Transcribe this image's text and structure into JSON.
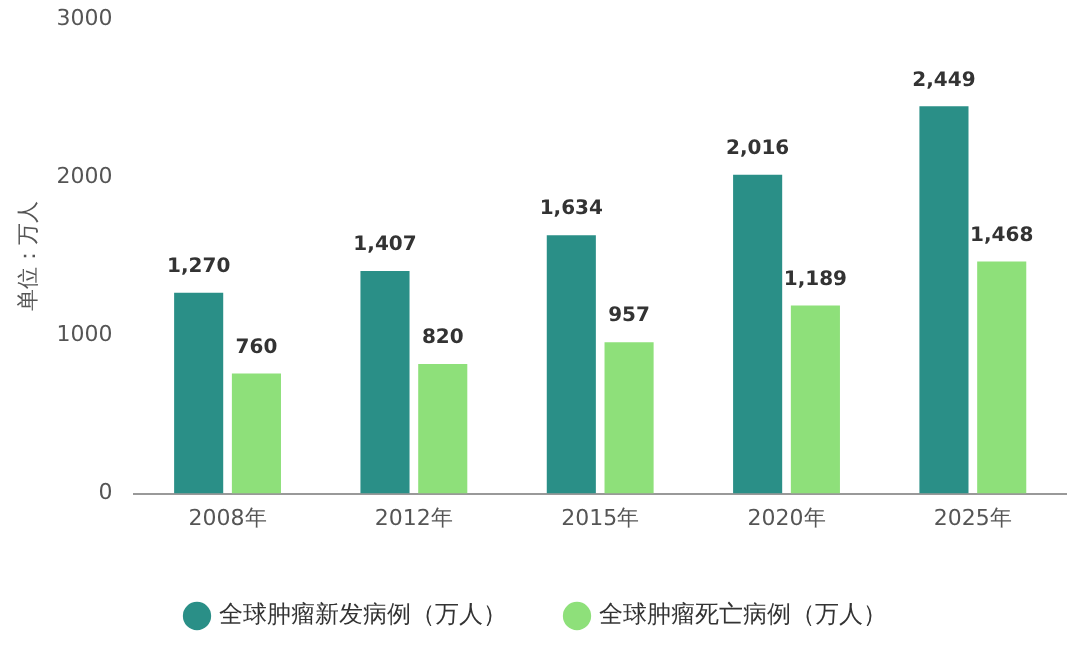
{
  "chart_data": {
    "type": "bar",
    "ylabel": "单位：万人",
    "categories": [
      "2008年",
      "2012年",
      "2015年",
      "2020年",
      "2025年"
    ],
    "series": [
      {
        "name": "全球肿瘤新发病例（万人）",
        "color": "#2a8f87",
        "values": [
          1270,
          1407,
          1634,
          2016,
          2449
        ],
        "value_labels": [
          "1,270",
          "1,407",
          "1,634",
          "2,016",
          "2,449"
        ]
      },
      {
        "name": "全球肿瘤死亡病例（万人）",
        "color": "#8ee07a",
        "values": [
          760,
          820,
          957,
          1189,
          1468
        ],
        "value_labels": [
          "760",
          "820",
          "957",
          "1,189",
          "1,468"
        ]
      }
    ],
    "ylim": [
      0,
      3000
    ],
    "yticks": [
      0,
      1000,
      2000,
      3000
    ],
    "grid": false,
    "legend": "bottom"
  }
}
